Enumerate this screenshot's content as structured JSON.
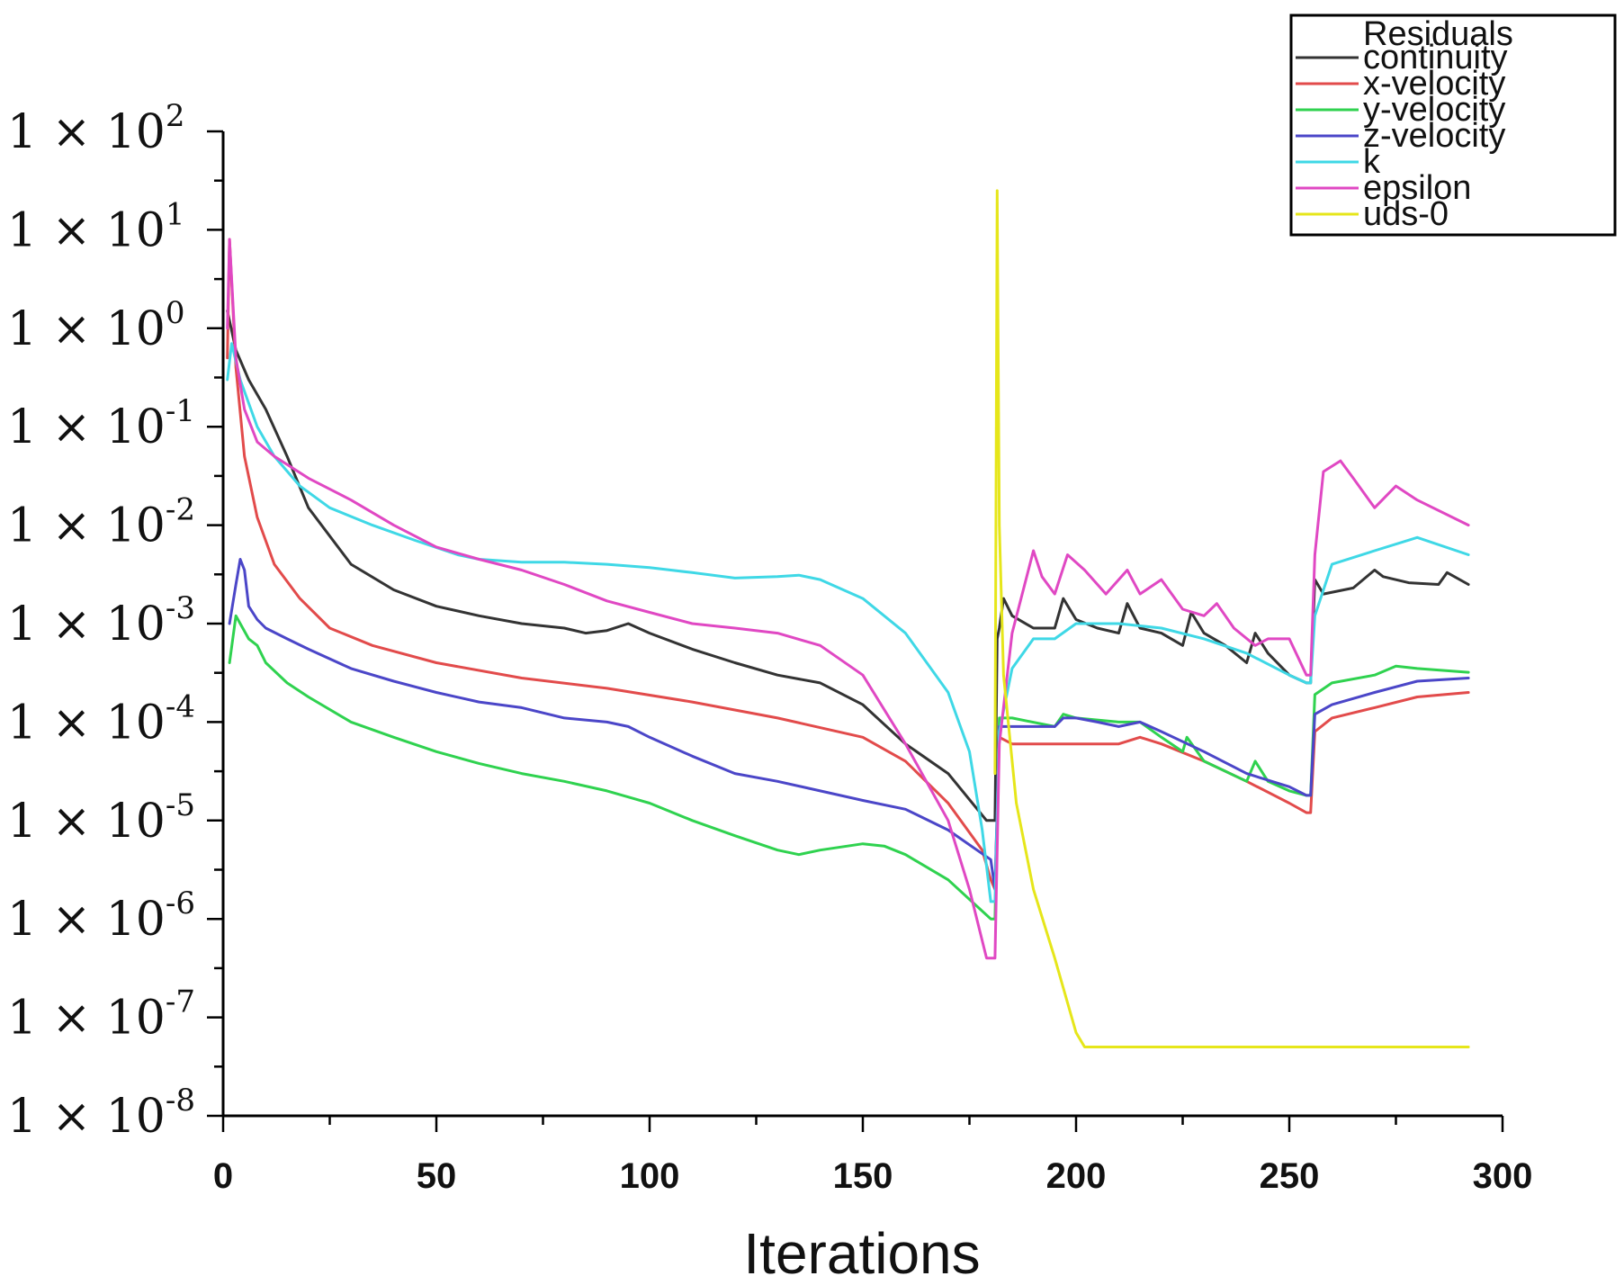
{
  "chart_data": {
    "type": "line",
    "title": "",
    "xlabel": "Iterations",
    "ylabel": "",
    "xlim": [
      0,
      300
    ],
    "ylim": [
      1e-08,
      100
    ],
    "yscale": "log",
    "x_ticks": [
      "0",
      "50",
      "100",
      "150",
      "200",
      "250",
      "300"
    ],
    "y_ticks": [
      {
        "base": "1 × 10",
        "exp": "2"
      },
      {
        "base": "1 × 10",
        "exp": "1"
      },
      {
        "base": "1 × 10",
        "exp": "0"
      },
      {
        "base": "1 × 10",
        "exp": "-1"
      },
      {
        "base": "1 × 10",
        "exp": "-2"
      },
      {
        "base": "1 × 10",
        "exp": "-3"
      },
      {
        "base": "1 × 10",
        "exp": "-4"
      },
      {
        "base": "1 × 10",
        "exp": "-5"
      },
      {
        "base": "1 × 10",
        "exp": "-6"
      },
      {
        "base": "1 × 10",
        "exp": "-7"
      },
      {
        "base": "1 × 10",
        "exp": "-8"
      }
    ],
    "legend_title": "Residuals",
    "legend_position": "top-right",
    "series": [
      {
        "name": "continuity",
        "color": "#333333",
        "x": [
          1,
          3,
          6,
          10,
          15,
          20,
          30,
          40,
          50,
          60,
          70,
          80,
          85,
          90,
          95,
          100,
          110,
          120,
          130,
          140,
          150,
          160,
          170,
          179,
          181,
          181.5,
          182,
          183,
          185,
          190,
          195,
          197,
          200,
          205,
          210,
          212,
          215,
          220,
          225,
          227,
          230,
          235,
          240,
          242,
          245,
          250,
          254,
          255,
          256,
          258,
          265,
          270,
          272,
          278,
          285,
          287,
          292
        ],
        "y": [
          1.5,
          0.6,
          0.3,
          0.15,
          0.05,
          0.015,
          0.004,
          0.0022,
          0.0015,
          0.0012,
          0.001,
          0.0009,
          0.0008,
          0.00085,
          0.001,
          0.0008,
          0.00055,
          0.0004,
          0.0003,
          0.00025,
          0.00015,
          6e-05,
          3e-05,
          1e-05,
          1e-05,
          0.0007,
          0.0009,
          0.0018,
          0.0012,
          0.0009,
          0.0009,
          0.0018,
          0.0011,
          0.0009,
          0.0008,
          0.0016,
          0.0009,
          0.0008,
          0.0006,
          0.0013,
          0.0008,
          0.0006,
          0.0004,
          0.0008,
          0.0005,
          0.0003,
          0.00025,
          0.00025,
          0.0028,
          0.002,
          0.0023,
          0.0035,
          0.003,
          0.0026,
          0.0025,
          0.0033,
          0.0025
        ]
      },
      {
        "name": "x-velocity",
        "color": "#e24b4b",
        "x": [
          1,
          1.5,
          3,
          5,
          8,
          12,
          18,
          25,
          35,
          50,
          70,
          90,
          110,
          130,
          150,
          160,
          170,
          178,
          180,
          181,
          182,
          185,
          195,
          200,
          210,
          215,
          220,
          230,
          240,
          250,
          254,
          255,
          256,
          260,
          270,
          280,
          292
        ],
        "y": [
          0.5,
          8,
          0.4,
          0.05,
          0.012,
          0.004,
          0.0018,
          0.0009,
          0.0006,
          0.0004,
          0.00028,
          0.00022,
          0.00016,
          0.00011,
          7e-05,
          4e-05,
          1.5e-05,
          5e-06,
          2.5e-06,
          2e-06,
          7e-05,
          6e-05,
          6e-05,
          6e-05,
          6e-05,
          7e-05,
          6e-05,
          4e-05,
          2.5e-05,
          1.5e-05,
          1.2e-05,
          1.2e-05,
          8e-05,
          0.00011,
          0.00014,
          0.00018,
          0.0002
        ]
      },
      {
        "name": "y-velocity",
        "color": "#2fd24f",
        "x": [
          1.5,
          3,
          4,
          6,
          8,
          10,
          15,
          20,
          30,
          40,
          50,
          60,
          70,
          80,
          90,
          100,
          110,
          120,
          130,
          135,
          140,
          150,
          155,
          160,
          170,
          180,
          181,
          182,
          185,
          195,
          197,
          200,
          210,
          215,
          220,
          225,
          226,
          230,
          240,
          242,
          245,
          250,
          254,
          255,
          256,
          260,
          270,
          275,
          280,
          292
        ],
        "y": [
          0.0004,
          0.0012,
          0.001,
          0.0007,
          0.0006,
          0.0004,
          0.00025,
          0.00018,
          0.0001,
          7e-05,
          5e-05,
          3.8e-05,
          3e-05,
          2.5e-05,
          2e-05,
          1.5e-05,
          1e-05,
          7e-06,
          5e-06,
          4.5e-06,
          5e-06,
          5.8e-06,
          5.5e-06,
          4.5e-06,
          2.5e-06,
          1e-06,
          1e-06,
          0.00011,
          0.00011,
          9e-05,
          0.00012,
          0.00011,
          0.0001,
          0.0001,
          7e-05,
          5e-05,
          7e-05,
          4e-05,
          2.5e-05,
          4e-05,
          2.5e-05,
          2e-05,
          1.8e-05,
          1.8e-05,
          0.00019,
          0.00025,
          0.0003,
          0.00037,
          0.00035,
          0.00032
        ]
      },
      {
        "name": "z-velocity",
        "color": "#4b46c8",
        "x": [
          1.5,
          3,
          4,
          5,
          6,
          8,
          10,
          15,
          20,
          30,
          40,
          50,
          60,
          70,
          80,
          90,
          95,
          100,
          110,
          120,
          130,
          140,
          150,
          160,
          170,
          180,
          181,
          182,
          185,
          195,
          197,
          200,
          205,
          210,
          215,
          220,
          230,
          240,
          250,
          254,
          255,
          256,
          260,
          270,
          280,
          292
        ],
        "y": [
          0.001,
          0.0025,
          0.0045,
          0.0035,
          0.0015,
          0.0011,
          0.0009,
          0.0007,
          0.00055,
          0.00035,
          0.00026,
          0.0002,
          0.00016,
          0.00014,
          0.00011,
          0.0001,
          9e-05,
          7e-05,
          4.5e-05,
          3e-05,
          2.5e-05,
          2e-05,
          1.6e-05,
          1.3e-05,
          8e-06,
          4e-06,
          2e-06,
          9e-05,
          9e-05,
          9e-05,
          0.00011,
          0.00011,
          0.0001,
          9e-05,
          0.0001,
          8e-05,
          5e-05,
          3e-05,
          2.2e-05,
          1.8e-05,
          1.8e-05,
          0.00012,
          0.00015,
          0.0002,
          0.00026,
          0.00028
        ]
      },
      {
        "name": "k",
        "color": "#3fd8e6",
        "x": [
          1,
          2,
          4,
          8,
          12,
          18,
          25,
          35,
          45,
          55,
          60,
          70,
          80,
          90,
          100,
          110,
          120,
          130,
          135,
          140,
          150,
          160,
          170,
          175,
          178,
          180,
          181,
          182,
          185,
          190,
          195,
          200,
          210,
          220,
          230,
          240,
          250,
          254,
          255,
          256,
          260,
          270,
          280,
          292
        ],
        "y": [
          0.3,
          0.7,
          0.3,
          0.1,
          0.05,
          0.025,
          0.015,
          0.01,
          0.007,
          0.005,
          0.0045,
          0.0042,
          0.0042,
          0.004,
          0.0037,
          0.0033,
          0.0029,
          0.003,
          0.0031,
          0.0028,
          0.0018,
          0.0008,
          0.0002,
          5e-05,
          8e-06,
          1.5e-06,
          1.5e-06,
          8e-05,
          0.00035,
          0.0007,
          0.0007,
          0.001,
          0.001,
          0.0009,
          0.0007,
          0.0005,
          0.0003,
          0.00025,
          0.00025,
          0.0012,
          0.004,
          0.0055,
          0.0075,
          0.005
        ]
      },
      {
        "name": "epsilon",
        "color": "#e048c3",
        "x": [
          1,
          1.5,
          3,
          5,
          8,
          12,
          20,
          30,
          40,
          50,
          60,
          70,
          80,
          90,
          100,
          110,
          120,
          130,
          140,
          150,
          160,
          170,
          175,
          179,
          181,
          182,
          185,
          190,
          192,
          195,
          198,
          202,
          207,
          212,
          215,
          220,
          225,
          230,
          233,
          237,
          242,
          245,
          250,
          254,
          255,
          256,
          258,
          262,
          265,
          270,
          275,
          280,
          292
        ],
        "y": [
          1,
          8,
          0.5,
          0.15,
          0.07,
          0.05,
          0.03,
          0.018,
          0.01,
          0.006,
          0.0045,
          0.0035,
          0.0025,
          0.0017,
          0.0013,
          0.001,
          0.0009,
          0.0008,
          0.0006,
          0.0003,
          6e-05,
          1e-05,
          2e-06,
          4e-07,
          4e-07,
          6e-05,
          0.0008,
          0.0055,
          0.003,
          0.002,
          0.005,
          0.0035,
          0.002,
          0.0035,
          0.002,
          0.0028,
          0.0014,
          0.0012,
          0.0016,
          0.0009,
          0.0006,
          0.0007,
          0.0007,
          0.0003,
          0.0003,
          0.005,
          0.035,
          0.045,
          0.03,
          0.015,
          0.025,
          0.018,
          0.01
        ]
      },
      {
        "name": "uds-0",
        "color": "#e6e61a",
        "x": [
          181,
          181.5,
          182,
          183,
          186,
          190,
          195,
          200,
          202,
          210,
          220,
          250,
          292
        ],
        "y": [
          3e-05,
          25,
          0.01,
          0.0003,
          1.5e-05,
          2e-06,
          4e-07,
          7e-08,
          5e-08,
          5e-08,
          5e-08,
          5e-08,
          5e-08
        ]
      }
    ]
  }
}
